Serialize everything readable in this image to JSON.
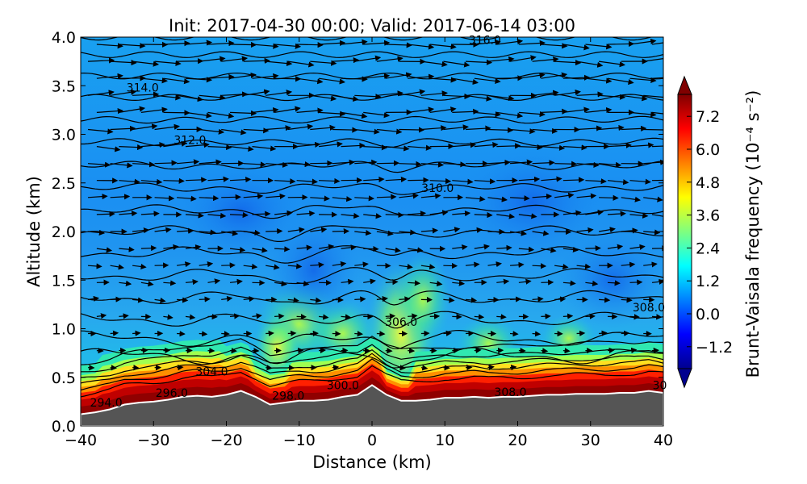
{
  "chart_data": {
    "type": "heatmap",
    "title": "Init: 2017-04-30 00:00; Valid: 2017-06-14 03:00",
    "xlabel": "Distance (km)",
    "ylabel": "Altitude (km)",
    "xlim": [
      -40,
      40
    ],
    "ylim": [
      0.0,
      4.0
    ],
    "x_ticks": [
      "−40",
      "−30",
      "−20",
      "−10",
      "0",
      "10",
      "20",
      "30",
      "40"
    ],
    "x_tick_values": [
      -40,
      -30,
      -20,
      -10,
      0,
      10,
      20,
      30,
      40
    ],
    "y_ticks": [
      "0.0",
      "0.5",
      "1.0",
      "1.5",
      "2.0",
      "2.5",
      "3.0",
      "3.5",
      "4.0"
    ],
    "y_tick_values": [
      0,
      0.5,
      1.0,
      1.5,
      2.0,
      2.5,
      3.0,
      3.5,
      4.0
    ],
    "colorbar": {
      "label": "Brunt-Vaisala frequency (10⁻⁴ s⁻²)",
      "ticks": [
        "7.2",
        "6.0",
        "4.8",
        "3.6",
        "2.4",
        "1.2",
        "0.0",
        "−1.2"
      ],
      "tick_values": [
        7.2,
        6.0,
        4.8,
        3.6,
        2.4,
        1.2,
        0.0,
        -1.2
      ],
      "range": [
        -2.0,
        8.0
      ],
      "colormap": "jet",
      "extend": "both"
    },
    "terrain": {
      "x": [
        -40,
        -38,
        -36,
        -34,
        -32,
        -30,
        -28,
        -26,
        -24,
        -22,
        -20,
        -18,
        -16,
        -14,
        -12,
        -10,
        -8,
        -6,
        -4,
        -2,
        0,
        2,
        4,
        6,
        8,
        10,
        12,
        14,
        16,
        18,
        20,
        22,
        24,
        26,
        28,
        30,
        32,
        34,
        36,
        38,
        40
      ],
      "altitude_km": [
        0.12,
        0.14,
        0.17,
        0.22,
        0.24,
        0.25,
        0.27,
        0.3,
        0.31,
        0.3,
        0.32,
        0.36,
        0.3,
        0.22,
        0.24,
        0.26,
        0.26,
        0.27,
        0.3,
        0.32,
        0.42,
        0.32,
        0.26,
        0.26,
        0.27,
        0.29,
        0.29,
        0.3,
        0.29,
        0.3,
        0.3,
        0.31,
        0.32,
        0.32,
        0.33,
        0.33,
        0.33,
        0.34,
        0.34,
        0.36,
        0.34
      ]
    },
    "potential_temperature_contours": {
      "labels": [
        {
          "text": "294.0",
          "x": -36.5,
          "y": 0.24
        },
        {
          "text": "296.0",
          "x": -27.5,
          "y": 0.34
        },
        {
          "text": "304.0",
          "x": -22.0,
          "y": 0.56
        },
        {
          "text": "298.0",
          "x": -11.5,
          "y": 0.31
        },
        {
          "text": "300.0",
          "x": -4.0,
          "y": 0.42
        },
        {
          "text": "306.0",
          "x": 4.0,
          "y": 1.07
        },
        {
          "text": "308.0",
          "x": 19.0,
          "y": 0.35
        },
        {
          "text": "308.0",
          "x": 38.0,
          "y": 1.22
        },
        {
          "text": "30",
          "x": 39.5,
          "y": 0.42
        },
        {
          "text": "310.0",
          "x": 9.0,
          "y": 2.45
        },
        {
          "text": "312.0",
          "x": -25.0,
          "y": 2.94
        },
        {
          "text": "314.0",
          "x": -31.5,
          "y": 3.48
        },
        {
          "text": "316.0",
          "x": 15.5,
          "y": 3.97
        }
      ]
    },
    "wind_vectors": "quiver arrows on a regular grid; strongest near top (rightward), weak near surface"
  }
}
